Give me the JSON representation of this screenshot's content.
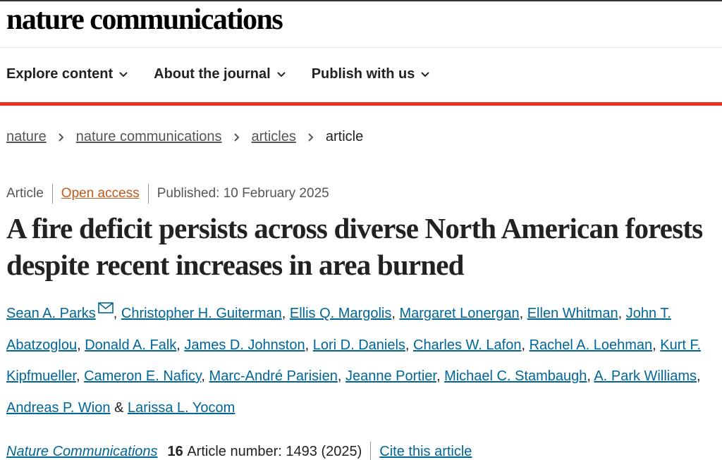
{
  "header": {
    "logo": "nature communications"
  },
  "nav": [
    "Explore content",
    "About the journal",
    "Publish with us"
  ],
  "breadcrumb": [
    "nature",
    "nature communications",
    "articles",
    "article"
  ],
  "meta": {
    "type": "Article",
    "access": "Open access",
    "published": "Published: 10 February 2025"
  },
  "title": "A fire deficit persists across diverse North American forests despite recent increases in area burned",
  "authors": {
    "names": [
      "Sean A. Parks",
      "Christopher H. Guiterman",
      "Ellis Q. Margolis",
      "Margaret Lonergan",
      "Ellen Whitman",
      "John T. Abatzoglou",
      "Donald A. Falk",
      "James D. Johnston",
      "Lori D. Daniels",
      "Charles W. Lafon",
      "Rachel A. Loehman",
      "Kurt F. Kipfmueller",
      "Cameron E. Naficy",
      "Marc-André Parisien",
      "Jeanne Portier",
      "Michael C. Stambaugh",
      "A. Park Williams",
      "Andreas P. Wion",
      "Larissa L. Yocom"
    ],
    "separator": ",",
    "last_separator": "&"
  },
  "citation": {
    "journal": "Nature Communications",
    "volume": "16",
    "article_number": "Article number: 1493 (2025)",
    "cite": "Cite this article"
  }
}
